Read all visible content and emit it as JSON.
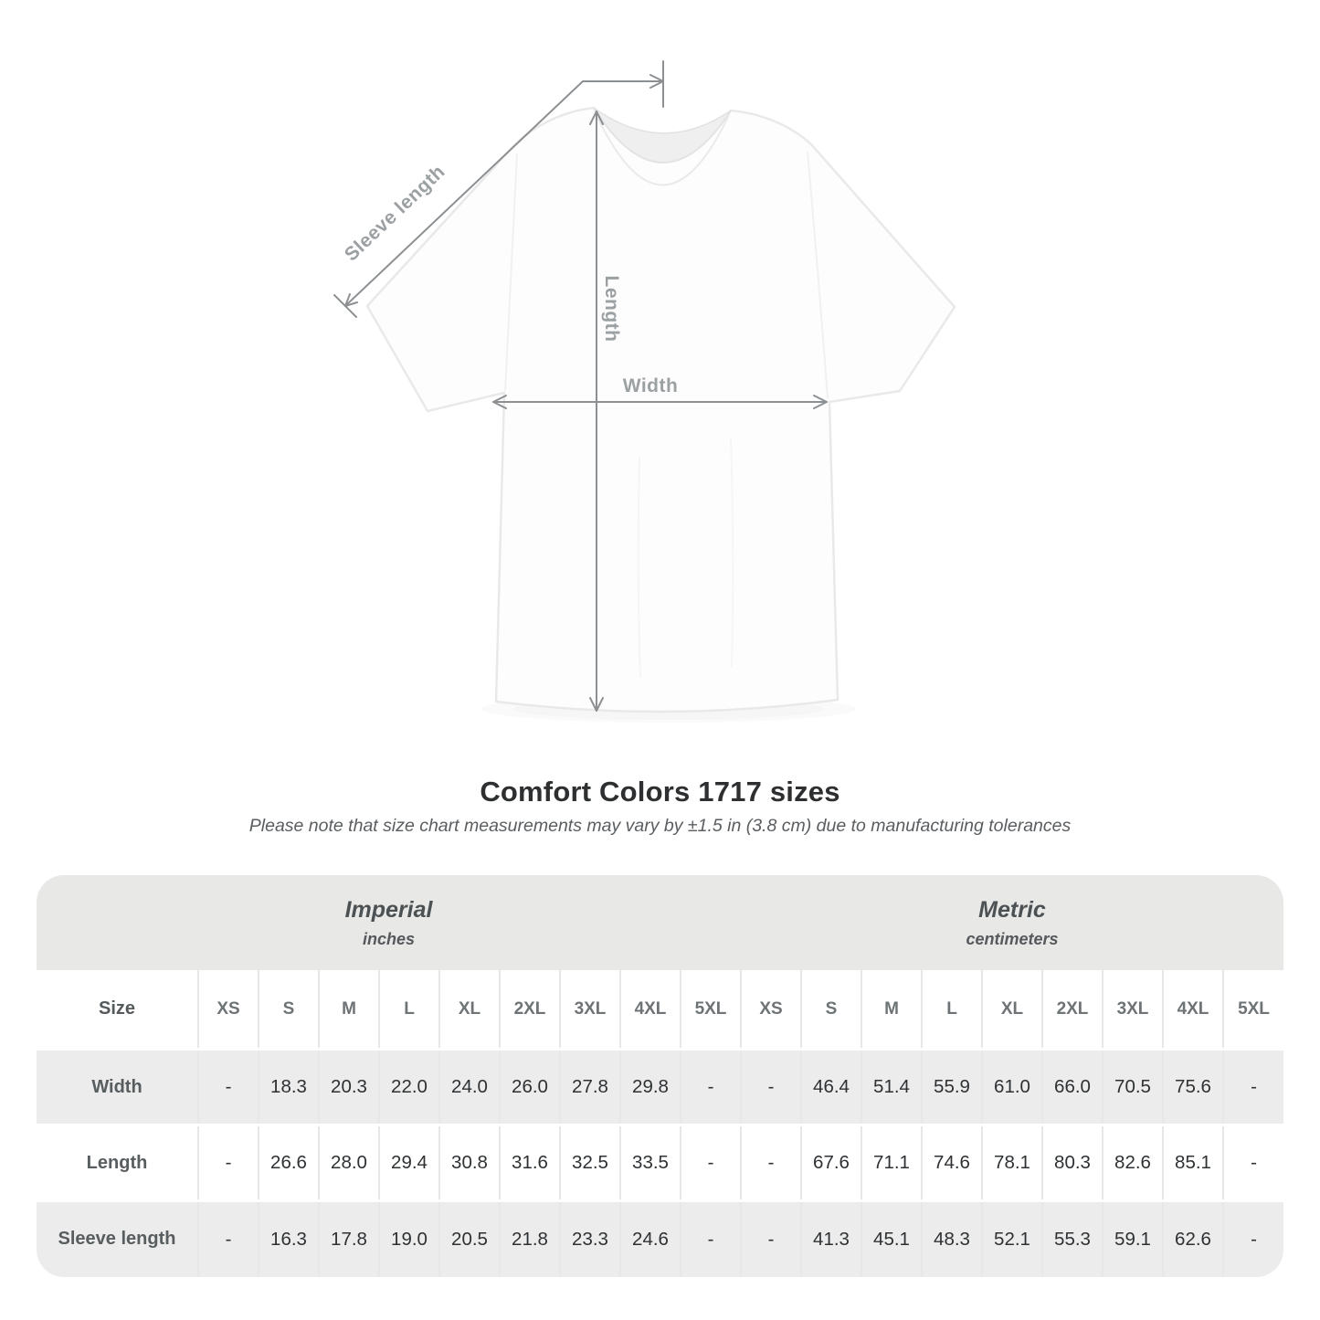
{
  "title": "Comfort Colors 1717 sizes",
  "subtitle": "Please note that size chart measurements may vary by ±1.5 in (3.8 cm) due to manufacturing tolerances",
  "diagram": {
    "labels": {
      "sleeve": "Sleeve length",
      "length": "Length",
      "width": "Width"
    },
    "colors": {
      "arrow": "#8d9093",
      "label": "#9ba0a3"
    }
  },
  "size_table": {
    "corner_header": "Size",
    "group_headers": [
      {
        "label": "Imperial",
        "unit": "inches"
      },
      {
        "label": "Metric",
        "unit": "centimeters"
      }
    ],
    "sizes": [
      "XS",
      "S",
      "M",
      "L",
      "XL",
      "2XL",
      "3XL",
      "4XL",
      "5XL"
    ],
    "rows": [
      {
        "label": "Width",
        "imperial": [
          "-",
          "18.3",
          "20.3",
          "22.0",
          "24.0",
          "26.0",
          "27.8",
          "29.8",
          "-"
        ],
        "metric": [
          "-",
          "46.4",
          "51.4",
          "55.9",
          "61.0",
          "66.0",
          "70.5",
          "75.6",
          "-"
        ]
      },
      {
        "label": "Length",
        "imperial": [
          "-",
          "26.6",
          "28.0",
          "29.4",
          "30.8",
          "31.6",
          "32.5",
          "33.5",
          "-"
        ],
        "metric": [
          "-",
          "67.6",
          "71.1",
          "74.6",
          "78.1",
          "80.3",
          "82.6",
          "85.1",
          "-"
        ]
      },
      {
        "label": "Sleeve length",
        "imperial": [
          "-",
          "16.3",
          "17.8",
          "19.0",
          "20.5",
          "21.8",
          "23.3",
          "24.6",
          "-"
        ],
        "metric": [
          "-",
          "41.3",
          "45.1",
          "48.3",
          "52.1",
          "55.3",
          "59.1",
          "62.6",
          "-"
        ]
      }
    ],
    "colors": {
      "band": "#e8e8e7",
      "stripe": "#ececec",
      "separator": "#e7e7e7"
    }
  }
}
